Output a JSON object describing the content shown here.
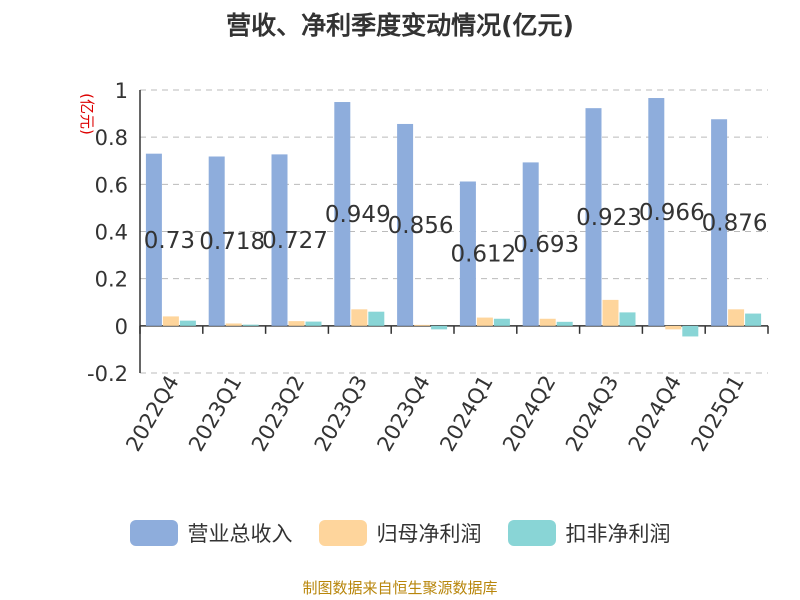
{
  "chart_data": {
    "type": "bar",
    "title": "营收、净利季度变动情况(亿元)",
    "ylabel": "(亿元)",
    "ylim": [
      -0.2,
      1
    ],
    "yticks": [
      -0.2,
      0,
      0.2,
      0.4,
      0.6,
      0.8,
      1
    ],
    "ytick_labels": [
      "-0.2",
      "0",
      "0.2",
      "0.4",
      "0.6",
      "0.8",
      "1"
    ],
    "grid": true,
    "legend_position": "bottom",
    "categories": [
      "2022Q4",
      "2023Q1",
      "2023Q2",
      "2023Q3",
      "2023Q4",
      "2024Q1",
      "2024Q2",
      "2024Q3",
      "2024Q4",
      "2025Q1"
    ],
    "series": [
      {
        "name": "营业总收入",
        "color": "#8eaddc",
        "values": [
          0.73,
          0.718,
          0.727,
          0.949,
          0.856,
          0.612,
          0.693,
          0.923,
          0.966,
          0.876
        ],
        "data_labels": [
          "0.73",
          "0.718",
          "0.727",
          "0.949",
          "0.856",
          "0.612",
          "0.693",
          "0.923",
          "0.966",
          "0.876"
        ]
      },
      {
        "name": "归母净利润",
        "color": "#fed59c",
        "values": [
          0.04,
          0.01,
          0.02,
          0.07,
          0.004,
          0.035,
          0.03,
          0.11,
          -0.015,
          0.07
        ]
      },
      {
        "name": "扣非净利润",
        "color": "#89d5d6",
        "values": [
          0.022,
          0.005,
          0.018,
          0.06,
          -0.015,
          0.03,
          0.017,
          0.057,
          -0.045,
          0.052
        ]
      }
    ]
  },
  "legend": {
    "items": [
      {
        "label": "营业总收入",
        "color": "#8eaddc"
      },
      {
        "label": "归母净利润",
        "color": "#fed59c"
      },
      {
        "label": "扣非净利润",
        "color": "#89d5d6"
      }
    ]
  },
  "source": "制图数据来自恒生聚源数据库"
}
